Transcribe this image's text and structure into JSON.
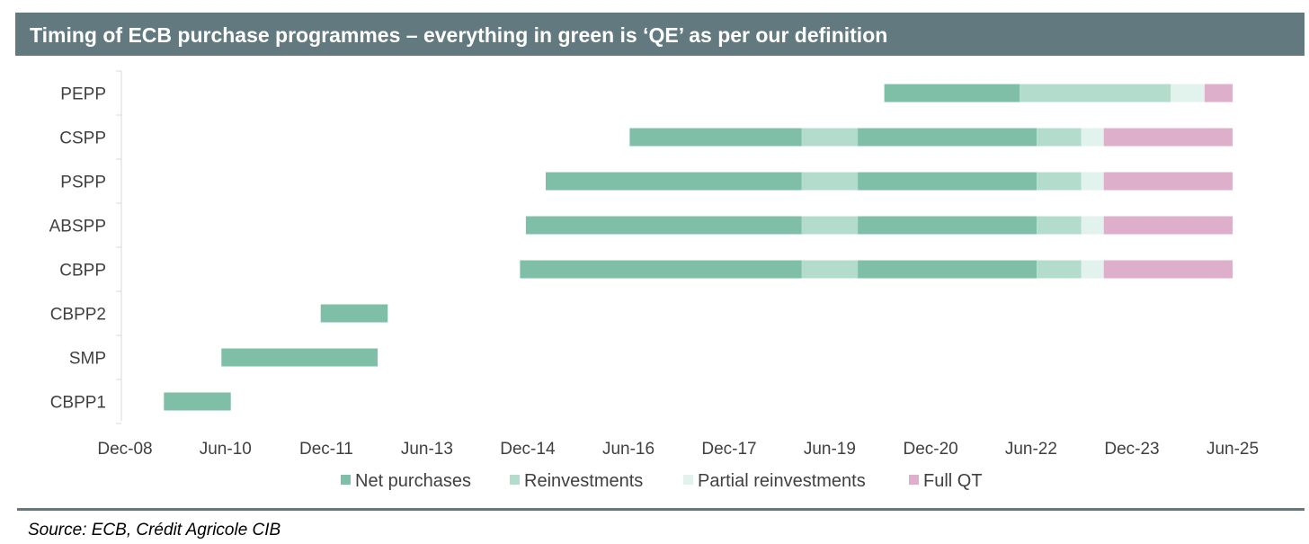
{
  "title": "Timing of ECB purchase programmes – everything in green is ‘QE’ as per our definition",
  "source": "Source: ECB, Crédit Agricole CIB",
  "chart_data": {
    "type": "bar",
    "subtype": "horizontal-gantt",
    "categories": [
      "PEPP",
      "CSPP",
      "PSPP",
      "ABSPP",
      "CBPP",
      "CBPP2",
      "SMP",
      "CBPP1"
    ],
    "x_axis": {
      "type": "date",
      "range": [
        "2008-12-01",
        "2025-06-01"
      ],
      "tick_labels": [
        "Dec-08",
        "Jun-10",
        "Dec-11",
        "Jun-13",
        "Dec-14",
        "Jun-16",
        "Dec-17",
        "Jun-19",
        "Dec-20",
        "Jun-22",
        "Dec-23",
        "Jun-25"
      ],
      "tick_values": [
        "2008-12-01",
        "2010-06-01",
        "2011-12-01",
        "2013-06-01",
        "2014-12-01",
        "2016-06-01",
        "2017-12-01",
        "2019-06-01",
        "2020-12-01",
        "2022-06-01",
        "2023-12-01",
        "2025-06-01"
      ]
    },
    "phases": [
      {
        "key": "net",
        "name": "Net purchases",
        "color": "#7fbfa8"
      },
      {
        "key": "reinv",
        "name": "Reinvestments",
        "color": "#b3dccd"
      },
      {
        "key": "partial",
        "name": "Partial reinvestments",
        "color": "#e2f2ec"
      },
      {
        "key": "qt",
        "name": "Full QT",
        "color": "#ddafcb"
      }
    ],
    "segments": [
      {
        "category": "PEPP",
        "phase": "net",
        "start": "2020-03-24",
        "end": "2022-03-31"
      },
      {
        "category": "PEPP",
        "phase": "reinv",
        "start": "2022-03-31",
        "end": "2024-06-30"
      },
      {
        "category": "PEPP",
        "phase": "partial",
        "start": "2024-06-30",
        "end": "2024-12-31"
      },
      {
        "category": "PEPP",
        "phase": "qt",
        "start": "2024-12-31",
        "end": "2025-06-01"
      },
      {
        "category": "CSPP",
        "phase": "net",
        "start": "2016-06-08",
        "end": "2018-12-31"
      },
      {
        "category": "CSPP",
        "phase": "reinv",
        "start": "2018-12-31",
        "end": "2019-11-01"
      },
      {
        "category": "CSPP",
        "phase": "net",
        "start": "2019-11-01",
        "end": "2022-07-01"
      },
      {
        "category": "CSPP",
        "phase": "reinv",
        "start": "2022-07-01",
        "end": "2023-03-01"
      },
      {
        "category": "CSPP",
        "phase": "partial",
        "start": "2023-03-01",
        "end": "2023-07-01"
      },
      {
        "category": "CSPP",
        "phase": "qt",
        "start": "2023-07-01",
        "end": "2025-06-01"
      },
      {
        "category": "PSPP",
        "phase": "net",
        "start": "2015-03-09",
        "end": "2018-12-31"
      },
      {
        "category": "PSPP",
        "phase": "reinv",
        "start": "2018-12-31",
        "end": "2019-11-01"
      },
      {
        "category": "PSPP",
        "phase": "net",
        "start": "2019-11-01",
        "end": "2022-07-01"
      },
      {
        "category": "PSPP",
        "phase": "reinv",
        "start": "2022-07-01",
        "end": "2023-03-01"
      },
      {
        "category": "PSPP",
        "phase": "partial",
        "start": "2023-03-01",
        "end": "2023-07-01"
      },
      {
        "category": "PSPP",
        "phase": "qt",
        "start": "2023-07-01",
        "end": "2025-06-01"
      },
      {
        "category": "ABSPP",
        "phase": "net",
        "start": "2014-11-21",
        "end": "2018-12-31"
      },
      {
        "category": "ABSPP",
        "phase": "reinv",
        "start": "2018-12-31",
        "end": "2019-11-01"
      },
      {
        "category": "ABSPP",
        "phase": "net",
        "start": "2019-11-01",
        "end": "2022-07-01"
      },
      {
        "category": "ABSPP",
        "phase": "reinv",
        "start": "2022-07-01",
        "end": "2023-03-01"
      },
      {
        "category": "ABSPP",
        "phase": "partial",
        "start": "2023-03-01",
        "end": "2023-07-01"
      },
      {
        "category": "ABSPP",
        "phase": "qt",
        "start": "2023-07-01",
        "end": "2025-06-01"
      },
      {
        "category": "CBPP",
        "phase": "net",
        "start": "2014-10-20",
        "end": "2018-12-31"
      },
      {
        "category": "CBPP",
        "phase": "reinv",
        "start": "2018-12-31",
        "end": "2019-11-01"
      },
      {
        "category": "CBPP",
        "phase": "net",
        "start": "2019-11-01",
        "end": "2022-07-01"
      },
      {
        "category": "CBPP",
        "phase": "reinv",
        "start": "2022-07-01",
        "end": "2023-03-01"
      },
      {
        "category": "CBPP",
        "phase": "partial",
        "start": "2023-03-01",
        "end": "2023-07-01"
      },
      {
        "category": "CBPP",
        "phase": "qt",
        "start": "2023-07-01",
        "end": "2025-06-01"
      },
      {
        "category": "CBPP2",
        "phase": "net",
        "start": "2011-11-01",
        "end": "2012-10-31"
      },
      {
        "category": "SMP",
        "phase": "net",
        "start": "2010-05-10",
        "end": "2012-09-06"
      },
      {
        "category": "CBPP1",
        "phase": "net",
        "start": "2009-07-01",
        "end": "2010-06-30"
      }
    ],
    "legend": {
      "position": "bottom"
    },
    "grid": false
  }
}
